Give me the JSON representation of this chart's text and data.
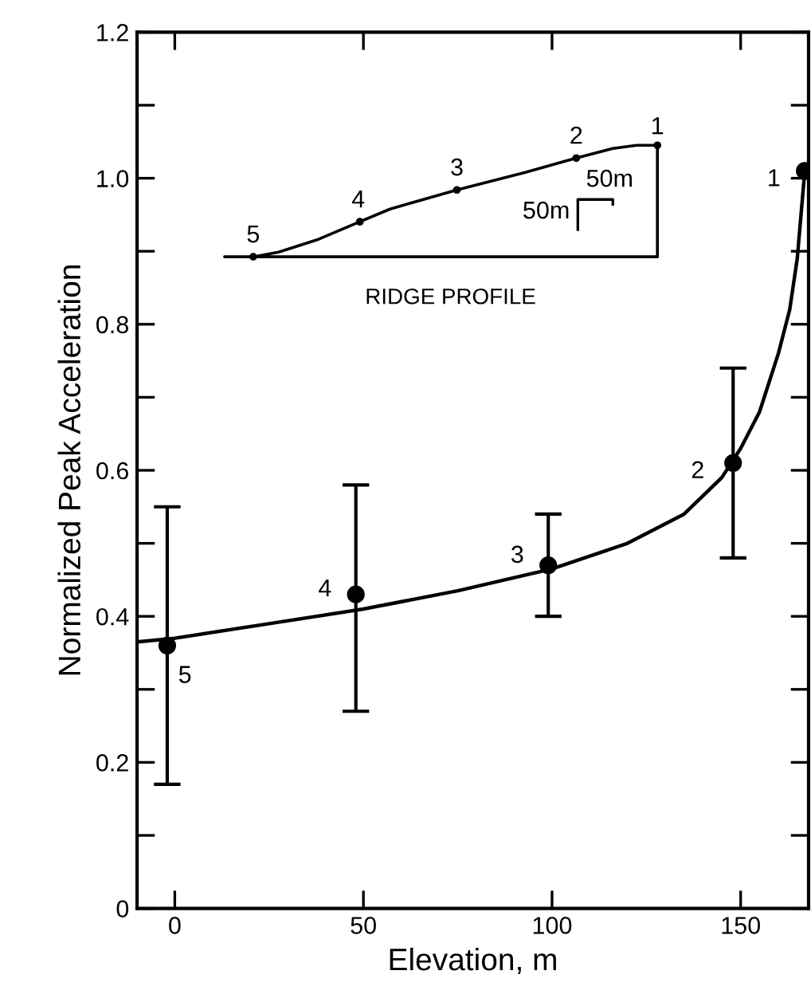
{
  "chart_data": {
    "type": "scatter",
    "xlabel": "Elevation, m",
    "ylabel": "Normalized Peak Acceleration",
    "xlim": [
      -10,
      168
    ],
    "xticks": [
      0,
      50,
      100,
      150
    ],
    "ylim": [
      0,
      1.2
    ],
    "yticks": [
      0,
      {
        "value": 0.1,
        "label": null
      },
      0.2,
      {
        "value": 0.3,
        "label": null
      },
      0.4,
      {
        "value": 0.5,
        "label": null
      },
      0.6,
      {
        "value": 0.7,
        "label": null
      },
      0.8,
      {
        "value": 0.9,
        "label": null
      },
      {
        "value": 1.0,
        "label": "1.0"
      },
      {
        "value": 1.1,
        "label": null
      },
      1.2
    ],
    "grid": false,
    "legend": false,
    "series": [
      {
        "marker": "circle",
        "color": "#000000",
        "x": [
          -2,
          48,
          99,
          148,
          167
        ],
        "values": [
          0.36,
          0.43,
          0.47,
          0.61,
          1.01
        ],
        "errors": [
          [
            0.17,
            0.55
          ],
          [
            0.27,
            0.58
          ],
          [
            0.4,
            0.54
          ],
          [
            0.48,
            0.74
          ],
          null
        ]
      },
      {
        "type": "line",
        "color": "#000000",
        "line_style": "solid",
        "x": [
          -10,
          0,
          25,
          50,
          75,
          100,
          120,
          135,
          145,
          150,
          155,
          160,
          163,
          165,
          167
        ],
        "values": [
          0.365,
          0.37,
          0.39,
          0.41,
          0.435,
          0.465,
          0.5,
          0.54,
          0.59,
          0.63,
          0.68,
          0.76,
          0.82,
          0.89,
          1.01
        ]
      }
    ],
    "annotations": [
      {
        "text": "5",
        "x": -2,
        "y": 0.36
      },
      {
        "text": "4",
        "x": 48,
        "y": 0.43
      },
      {
        "text": "3",
        "x": 99,
        "y": 0.47
      },
      {
        "text": "2",
        "x": 148,
        "y": 0.61
      },
      {
        "text": "1",
        "x": 167,
        "y": 1.01
      },
      "RIDGE PROFILE",
      "50m",
      "50m",
      "1",
      "2",
      "3",
      "4",
      "5"
    ]
  }
}
